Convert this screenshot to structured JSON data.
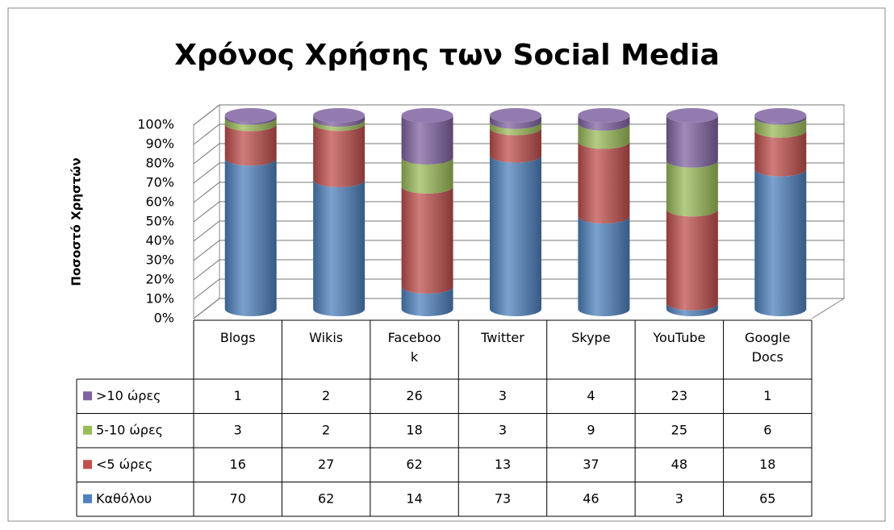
{
  "chart_data": {
    "type": "bar",
    "stacked": "percent",
    "title": "Χρόνος Χρήσης των Social Media",
    "y_label": "Ποσοστό Χρηστών",
    "categories": [
      "Blogs",
      "Wikis",
      "Facebook",
      "Twitter",
      "Skype",
      "YouTube",
      "Google Docs"
    ],
    "series": [
      {
        "name": "Καθόλου",
        "color": "#4f81bd",
        "values": [
          70,
          62,
          14,
          73,
          46,
          3,
          65
        ]
      },
      {
        "name": "<5 ώρες",
        "color": "#c0504d",
        "values": [
          16,
          27,
          62,
          13,
          37,
          48,
          18
        ]
      },
      {
        "name": "5-10 ώρες",
        "color": "#9bbb59",
        "values": [
          3,
          2,
          18,
          3,
          9,
          25,
          6
        ]
      },
      {
        "name": ">10 ώρες",
        "color": "#8064a2",
        "values": [
          1,
          2,
          26,
          3,
          4,
          23,
          1
        ]
      }
    ],
    "ylim": [
      0,
      100
    ],
    "yticks": [
      {
        "value": 0,
        "label": "0%"
      },
      {
        "value": 10,
        "label": "10%"
      },
      {
        "value": 20,
        "label": "20%"
      },
      {
        "value": 30,
        "label": "30%"
      },
      {
        "value": 40,
        "label": "40%"
      },
      {
        "value": 50,
        "label": "50%"
      },
      {
        "value": 60,
        "label": "60%"
      },
      {
        "value": 70,
        "label": "70%"
      },
      {
        "value": 80,
        "label": "80%"
      },
      {
        "value": 90,
        "label": "90%"
      },
      {
        "value": 100,
        "label": "100%"
      }
    ],
    "grid": true,
    "data_table": true
  }
}
